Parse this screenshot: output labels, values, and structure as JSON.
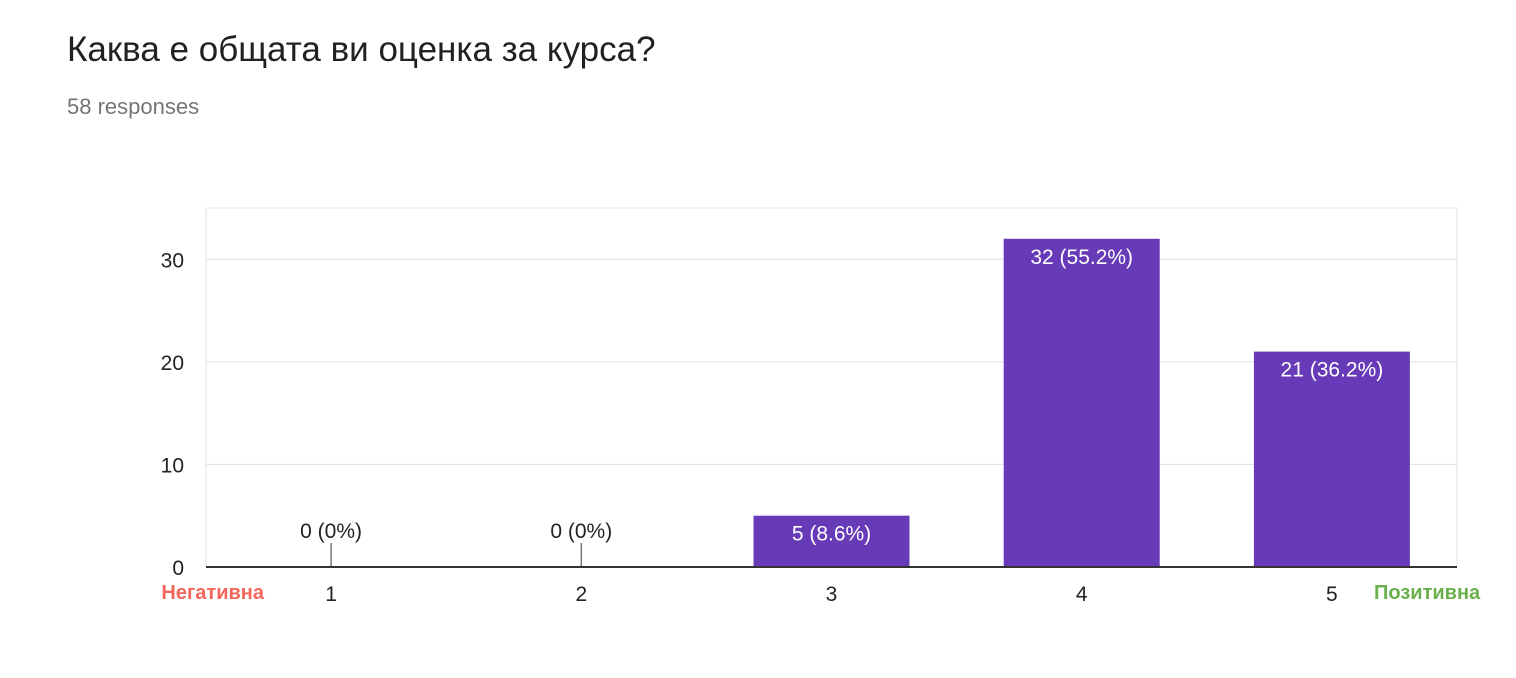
{
  "header": {
    "question": "Каква е общата ви оценка за курса?",
    "responses": "58 responses"
  },
  "colors": {
    "bar": "#673ab7",
    "gridline": "#e0e0e0",
    "baseline": "#333333",
    "negative_label": "#f4665b",
    "positive_label": "#6ab04c"
  },
  "chart_data": {
    "type": "bar",
    "categories": [
      "1",
      "2",
      "3",
      "4",
      "5"
    ],
    "values": [
      0,
      0,
      5,
      32,
      21
    ],
    "data_labels": [
      "0 (0%)",
      "0 (0%)",
      "5 (8.6%)",
      "32 (55.2%)",
      "21 (36.2%)"
    ],
    "yticks": [
      0,
      10,
      20,
      30
    ],
    "ylim": [
      0,
      35
    ],
    "grid": true,
    "scale_labels": {
      "low": "Негативна",
      "high": "Позитивна"
    }
  }
}
